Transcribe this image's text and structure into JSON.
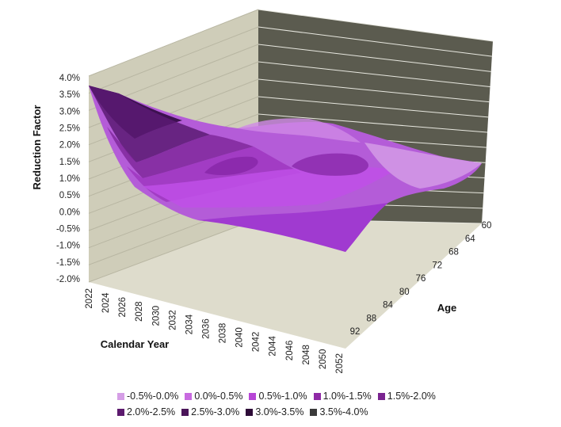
{
  "chart_data": {
    "type": "surface",
    "zlabel": "Reduction Factor",
    "xlabel": "Calendar Year",
    "ylabel": "Age",
    "zlim": [
      -0.02,
      0.04
    ],
    "z_ticks": [
      "4.0%",
      "3.5%",
      "3.0%",
      "2.5%",
      "2.0%",
      "1.5%",
      "1.0%",
      "0.5%",
      "0.0%",
      "-0.5%",
      "-1.0%",
      "-1.5%",
      "-2.0%"
    ],
    "year_ticks": [
      "2022",
      "2024",
      "2026",
      "2028",
      "2030",
      "2032",
      "2034",
      "2036",
      "2038",
      "2040",
      "2042",
      "2044",
      "2046",
      "2048",
      "2050",
      "2052"
    ],
    "age_ticks": [
      "60",
      "64",
      "68",
      "72",
      "76",
      "80",
      "84",
      "88",
      "92"
    ],
    "surface_profile": {
      "years_at_age_60": [
        2022,
        2026,
        2030,
        2034,
        2038,
        2042,
        2046,
        2050,
        2052
      ],
      "values_at_age_60_pct": [
        3.7,
        2.9,
        2.0,
        1.7,
        2.0,
        1.8,
        2.1,
        1.6,
        1.5
      ],
      "values_at_age_92_pct": [
        0.1,
        0.2,
        0.3,
        0.2,
        0.3,
        0.2,
        0.3,
        0.3,
        0.3
      ]
    },
    "legend": [
      {
        "label": "-0.5%-0.0%",
        "color": "#d59ee6"
      },
      {
        "label": "0.0%-0.5%",
        "color": "#c86ae0"
      },
      {
        "label": "0.5%-1.0%",
        "color": "#b746d6"
      },
      {
        "label": "1.0%-1.5%",
        "color": "#8f2aa6"
      },
      {
        "label": "1.5%-2.0%",
        "color": "#7a2490"
      },
      {
        "label": "2.0%-2.5%",
        "color": "#5c1a6e"
      },
      {
        "label": "2.5%-3.0%",
        "color": "#4a1559"
      },
      {
        "label": "3.0%-3.5%",
        "color": "#2e0c38"
      },
      {
        "label": "3.5%-4.0%",
        "color": "#3a3a3a"
      }
    ]
  }
}
